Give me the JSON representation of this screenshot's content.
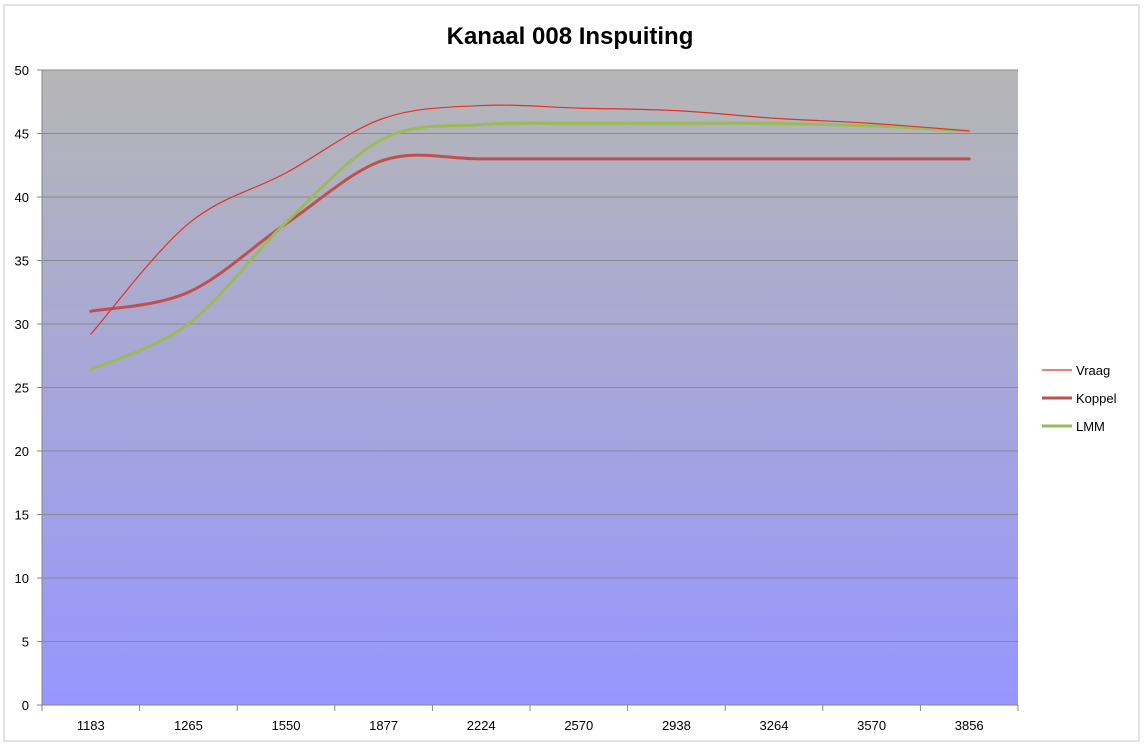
{
  "chart_data": {
    "type": "line",
    "title": "Kanaal 008 Inspuiting",
    "xlabel": "",
    "ylabel": "",
    "categories": [
      "1183",
      "1265",
      "1550",
      "1877",
      "2224",
      "2570",
      "2938",
      "3264",
      "3570",
      "3856"
    ],
    "ylim": [
      0,
      50
    ],
    "yticks": [
      0,
      5,
      10,
      15,
      20,
      25,
      30,
      35,
      40,
      45,
      50
    ],
    "grid": true,
    "legend_position": "right",
    "series": [
      {
        "name": "Vraag",
        "color": "#e0312b",
        "values": [
          29.2,
          37.9,
          41.9,
          46.2,
          47.2,
          47.0,
          46.8,
          46.2,
          45.8,
          45.2
        ]
      },
      {
        "name": "Koppel",
        "color": "#c0504d",
        "values": [
          31.0,
          32.5,
          37.9,
          42.9,
          43.0,
          43.0,
          43.0,
          43.0,
          43.0,
          43.0
        ]
      },
      {
        "name": "LMM",
        "color": "#9bbb59",
        "values": [
          26.4,
          30.0,
          38.0,
          44.6,
          45.7,
          45.8,
          45.8,
          45.8,
          45.6,
          45.2
        ]
      }
    ],
    "plot_background": {
      "top_color": "#b6b6b6",
      "bottom_color": "#9696ff"
    }
  }
}
